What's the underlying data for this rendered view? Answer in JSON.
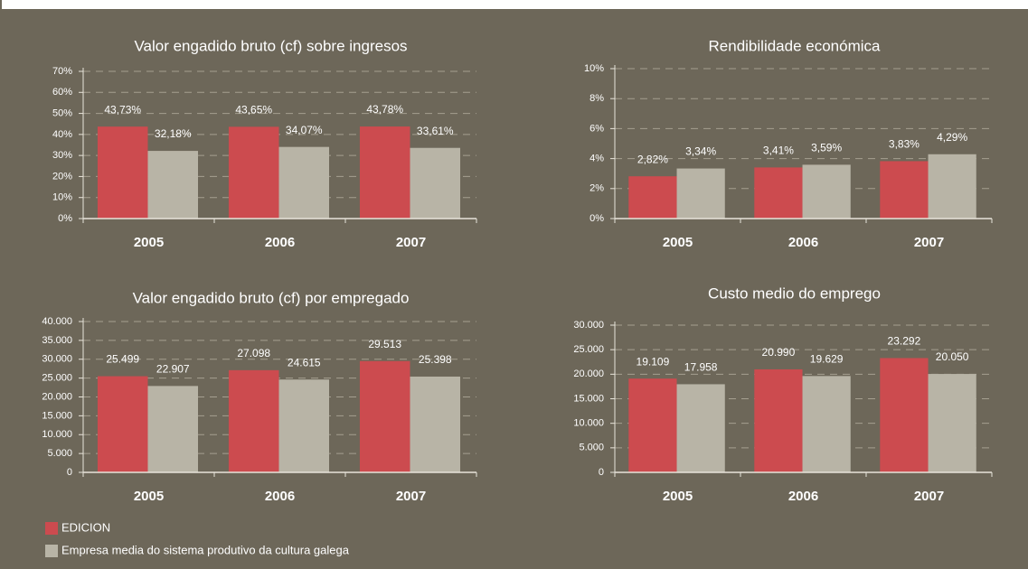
{
  "chart_data": [
    {
      "type": "bar",
      "title": "Valor engadido bruto (cf) sobre ingresos",
      "categories": [
        "2005",
        "2006",
        "2007"
      ],
      "series": [
        {
          "values": [
            43.73,
            43.65,
            43.78
          ],
          "value_labels": [
            "43,73%",
            "43,65%",
            "43,78%"
          ]
        },
        {
          "values": [
            32.18,
            34.07,
            33.61
          ],
          "value_labels": [
            "32,18%",
            "34,07%",
            "33,61%"
          ]
        }
      ],
      "ylim": [
        0,
        70
      ],
      "yticks": [
        {
          "value": 0,
          "label": "0%"
        },
        {
          "value": 10,
          "label": "10%"
        },
        {
          "value": 20,
          "label": "20%"
        },
        {
          "value": 30,
          "label": "30%"
        },
        {
          "value": 40,
          "label": "40%"
        },
        {
          "value": 50,
          "label": "50%"
        },
        {
          "value": 60,
          "label": "60%"
        },
        {
          "value": 70,
          "label": "70%"
        }
      ],
      "grid": true
    },
    {
      "type": "bar",
      "title": "Rendibilidade económica",
      "categories": [
        "2005",
        "2006",
        "2007"
      ],
      "series": [
        {
          "values": [
            2.82,
            3.41,
            3.83
          ],
          "value_labels": [
            "2,82%",
            "3,41%",
            "3,83%"
          ]
        },
        {
          "values": [
            3.34,
            3.59,
            4.29
          ],
          "value_labels": [
            "3,34%",
            "3,59%",
            "4,29%"
          ]
        }
      ],
      "ylim": [
        0,
        10
      ],
      "yticks": [
        {
          "value": 0,
          "label": "0%"
        },
        {
          "value": 2,
          "label": "2%"
        },
        {
          "value": 4,
          "label": "4%"
        },
        {
          "value": 6,
          "label": "6%"
        },
        {
          "value": 8,
          "label": "8%"
        },
        {
          "value": 10,
          "label": "10%"
        }
      ],
      "grid": true
    },
    {
      "type": "bar",
      "title": "Valor engadido bruto (cf) por empregado",
      "categories": [
        "2005",
        "2006",
        "2007"
      ],
      "series": [
        {
          "values": [
            25499,
            27098,
            29513
          ],
          "value_labels": [
            "25.499",
            "27.098",
            "29.513"
          ]
        },
        {
          "values": [
            22907,
            24615,
            25398
          ],
          "value_labels": [
            "22.907",
            "24.615",
            "25.398"
          ]
        }
      ],
      "ylim": [
        0,
        40000
      ],
      "yticks": [
        0,
        {
          "value": 5000,
          "label": "5.000"
        },
        {
          "value": 10000,
          "label": "10.000"
        },
        {
          "value": 15000,
          "label": "15.000"
        },
        {
          "value": 20000,
          "label": "20.000"
        },
        {
          "value": 25000,
          "label": "25.000"
        },
        {
          "value": 30000,
          "label": "30.000"
        },
        {
          "value": 35000,
          "label": "35.000"
        },
        {
          "value": 40000,
          "label": "40.000"
        }
      ],
      "grid": true
    },
    {
      "type": "bar",
      "title": "Custo medio do emprego",
      "categories": [
        "2005",
        "2006",
        "2007"
      ],
      "series": [
        {
          "values": [
            19109,
            20990,
            23292
          ],
          "value_labels": [
            "19.109",
            "20.990",
            "23.292"
          ]
        },
        {
          "values": [
            17958,
            19629,
            20050
          ],
          "value_labels": [
            "17.958",
            "19.629",
            "20.050"
          ]
        }
      ],
      "ylim": [
        0,
        30000
      ],
      "yticks": [
        0,
        {
          "value": 5000,
          "label": "5.000"
        },
        {
          "value": 10000,
          "label": "10.000"
        },
        {
          "value": 15000,
          "label": "15.000"
        },
        {
          "value": 20000,
          "label": "20.000"
        },
        {
          "value": 25000,
          "label": "25.000"
        },
        {
          "value": 30000,
          "label": "30.000"
        }
      ],
      "grid": true
    }
  ],
  "legend": {
    "items": [
      {
        "name": "EDICION",
        "color": "#cc4b4f"
      },
      {
        "name": "Empresa media do sistema produtivo da cultura galega",
        "color": "#b8b4a6"
      }
    ]
  }
}
